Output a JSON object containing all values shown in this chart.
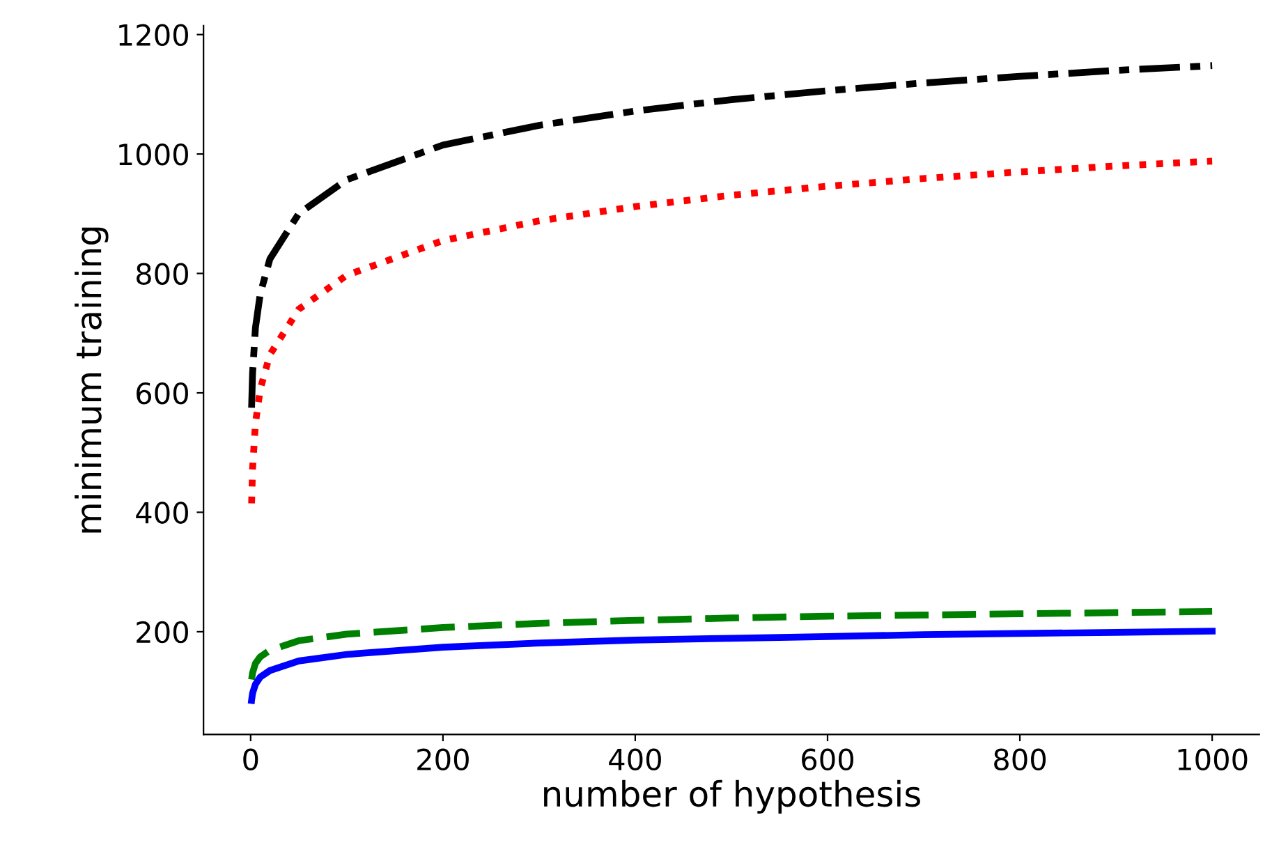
{
  "chart_data": {
    "type": "line",
    "xlabel": "number of hypothesis",
    "ylabel": "minimum training",
    "x": [
      1,
      2,
      5,
      10,
      20,
      50,
      100,
      200,
      300,
      400,
      500,
      600,
      700,
      800,
      900,
      1000
    ],
    "series": [
      {
        "color": "#000000",
        "line_style": "dashdot",
        "values": [
          575,
          633,
          709,
          766,
          824,
          900,
          957,
          1015,
          1048,
          1072,
          1091,
          1106,
          1119,
          1130,
          1140,
          1148
        ]
      },
      {
        "color": "#ff0000",
        "line_style": "dotted",
        "values": [
          415,
          473,
          549,
          606,
          664,
          740,
          797,
          855,
          888,
          912,
          931,
          946,
          959,
          970,
          980,
          988
        ]
      },
      {
        "color": "#008000",
        "line_style": "dashed",
        "values": [
          120,
          131,
          147,
          158,
          169,
          185,
          196,
          207,
          214,
          219,
          223,
          226,
          228,
          230,
          232,
          234
        ]
      },
      {
        "color": "#0000ff",
        "line_style": "solid",
        "values": [
          85,
          97,
          112,
          124,
          135,
          151,
          162,
          174,
          181,
          186,
          189,
          192,
          195,
          197,
          199,
          201
        ]
      }
    ],
    "xlim": [
      -49,
      1049
    ],
    "ylim": [
      28,
      1215
    ],
    "xticks": [
      0,
      200,
      400,
      600,
      800,
      1000
    ],
    "yticks": [
      200,
      400,
      600,
      800,
      1000,
      1200
    ],
    "grid": false,
    "legend": false,
    "marker": "none"
  }
}
